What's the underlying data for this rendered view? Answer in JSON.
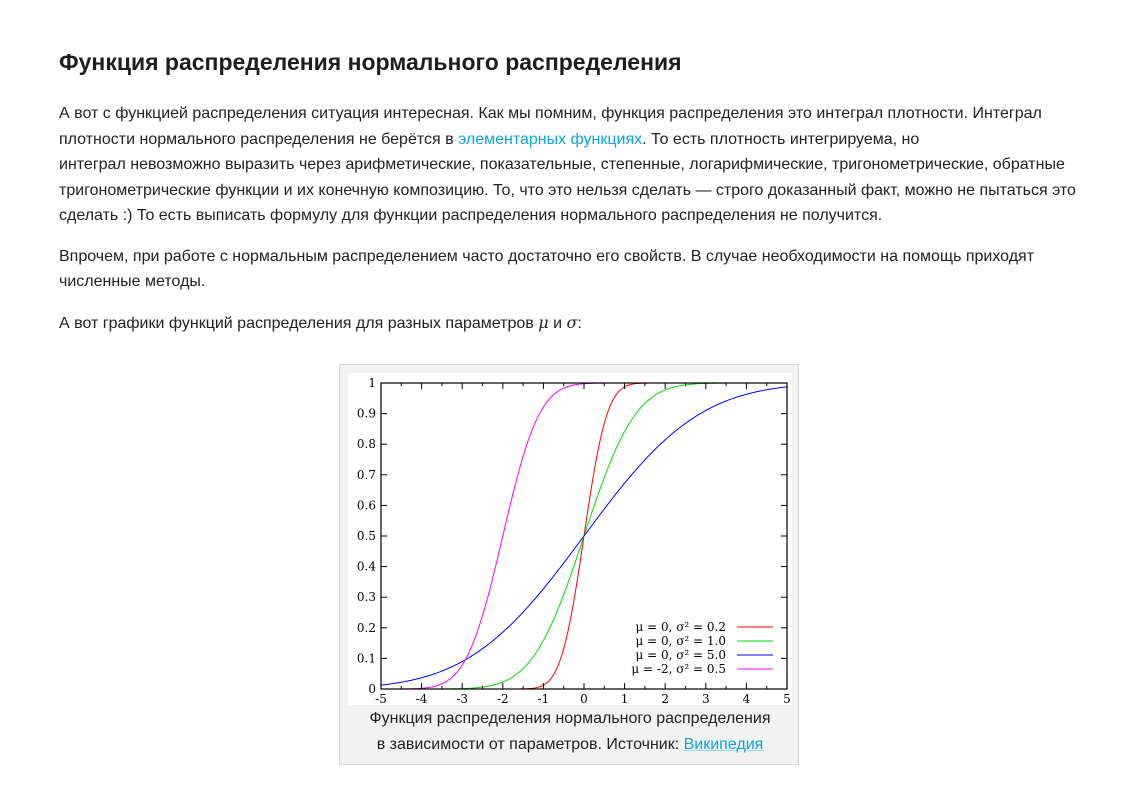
{
  "article": {
    "heading": "Функция распределения нормального распределения",
    "p1": {
      "text_before_link": "А вот с функцией распределения ситуация интересная. Как мы помним, функция распределения это интеграл плотности. Интеграл плотности нормального распределения не берётся в ",
      "link_text": "элементарных функциях",
      "text_after_link": ". То есть плотность интегрируема, но",
      "line2": "интеграл невозможно выразить через арифметические, показательные, степенные, логарифмические, тригонометрические, обратные тригонометрические функции и их конечную композицию. То, что это нельзя сделать — строго доказанный факт, можно не пытаться это сделать :) То есть выписать формулу для функции распределения нормального распределения не получится."
    },
    "p2": "Впрочем, при работе с нормальным распределением часто достаточно его свойств. В случае необходимости на помощь приходят численные методы.",
    "p3": {
      "text_before": "А вот графики функций распределения для разных параметров ",
      "mu": "μ",
      "and": " и ",
      "sigma": "σ",
      "colon": ":"
    }
  },
  "figure": {
    "caption_line1": "Функция распределения нормального распределения",
    "caption_line2_before": "в зависимости от параметров. Источник: ",
    "caption_link": "Википедия"
  },
  "chart_data": {
    "type": "line",
    "xlim": [
      -5,
      5
    ],
    "ylim": [
      0,
      1
    ],
    "x_ticks": [
      "-5",
      "-4",
      "-3",
      "-2",
      "-1",
      "0",
      "1",
      "2",
      "3",
      "4",
      "5"
    ],
    "y_ticks": [
      "0",
      "0.1",
      "0.2",
      "0.3",
      "0.4",
      "0.5",
      "0.6",
      "0.7",
      "0.8",
      "0.9",
      "1"
    ],
    "legend_position": "bottom-right",
    "grid": false,
    "series": [
      {
        "name": "μ =  0, σ² = 0.2",
        "mu": 0,
        "variance": 0.2,
        "color": "#ff0000"
      },
      {
        "name": "μ =  0, σ² = 1.0",
        "mu": 0,
        "variance": 1.0,
        "color": "#00dd00"
      },
      {
        "name": "μ =  0, σ² = 5.0",
        "mu": 0,
        "variance": 5.0,
        "color": "#0000ff"
      },
      {
        "name": "μ = -2, σ² = 0.5",
        "mu": -2,
        "variance": 0.5,
        "color": "#ff00ff"
      }
    ]
  }
}
